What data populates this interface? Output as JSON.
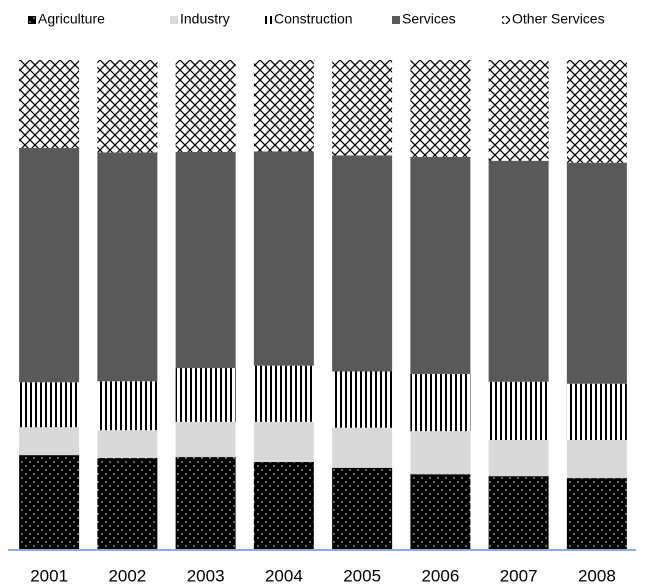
{
  "chart_data": {
    "type": "stacked-bar-100",
    "categories": [
      "2001",
      "2002",
      "2003",
      "2004",
      "2005",
      "2006",
      "2007",
      "2008"
    ],
    "series": [
      {
        "name": "Agriculture",
        "color": "#000000",
        "pattern": "dots",
        "values": [
          19.2,
          18.6,
          18.8,
          17.8,
          16.6,
          15.3,
          14.9,
          14.5
        ]
      },
      {
        "name": "Industry",
        "color": "#d9d9d9",
        "pattern": "solid",
        "values": [
          5.7,
          5.7,
          7.2,
          8.2,
          8.2,
          8.8,
          7.4,
          7.8
        ]
      },
      {
        "name": "Construction",
        "color": "#000000",
        "pattern": "vertical",
        "values": [
          9.2,
          10.0,
          11.0,
          11.5,
          11.5,
          11.7,
          11.9,
          11.5
        ]
      },
      {
        "name": "Services",
        "color": "#595959",
        "pattern": "solid",
        "values": [
          47.9,
          46.8,
          44.2,
          43.8,
          44.2,
          44.4,
          45.2,
          45.2
        ]
      },
      {
        "name": "Other Services",
        "color": "#000000",
        "pattern": "crosshatch",
        "values": [
          18.0,
          18.9,
          18.8,
          18.7,
          19.5,
          19.8,
          20.6,
          21.0
        ]
      }
    ],
    "ylim": [
      0,
      100
    ],
    "baseline_color": "#8eaadb"
  }
}
